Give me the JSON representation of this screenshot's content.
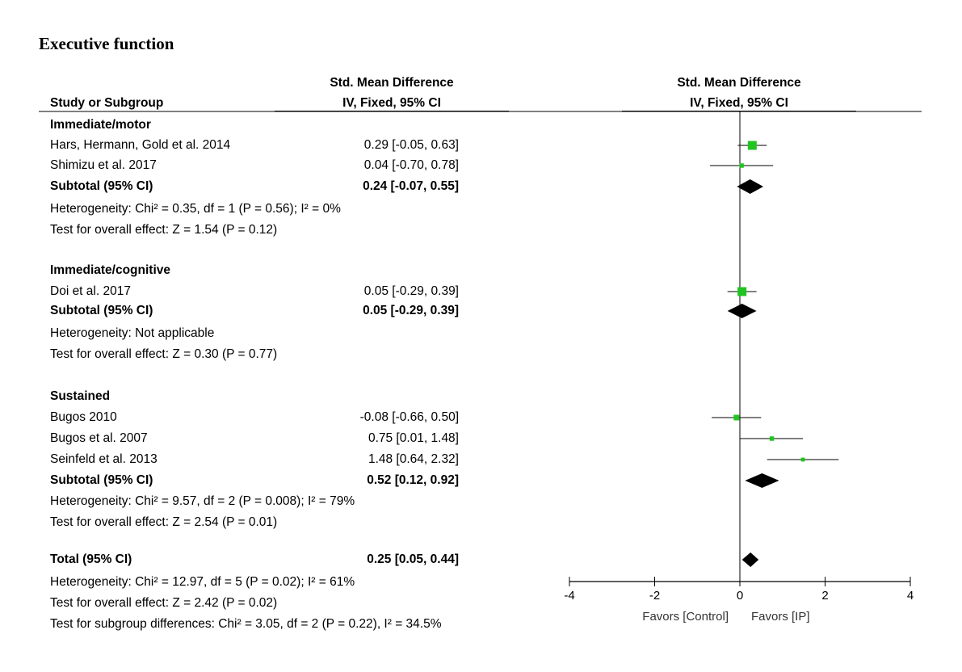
{
  "title": "Executive function",
  "headers": {
    "study": "Study or Subgroup",
    "left_col_top": "Std. Mean Difference",
    "left_col_bottom": "IV, Fixed, 95% CI",
    "plot_col_top": "Std. Mean Difference",
    "plot_col_bottom": "IV, Fixed, 95% CI"
  },
  "rows": [
    {
      "kind": "group",
      "label": "Immediate/motor"
    },
    {
      "kind": "study",
      "label": "Hars, Hermann, Gold et al. 2014",
      "ci": "0.29 [-0.05, 0.63]"
    },
    {
      "kind": "study",
      "label": "Shimizu et al. 2017",
      "ci": "0.04 [-0.70, 0.78]"
    },
    {
      "kind": "subtotal",
      "label": "Subtotal (95% CI)",
      "ci": "0.24 [-0.07, 0.55]"
    },
    {
      "kind": "note",
      "label": "Heterogeneity: Chi² = 0.35, df = 1 (P = 0.56); I² = 0%"
    },
    {
      "kind": "note",
      "label": "Test for overall effect: Z = 1.54 (P = 0.12)"
    },
    {
      "kind": "group",
      "label": "Immediate/cognitive"
    },
    {
      "kind": "study",
      "label": "Doi et al. 2017",
      "ci": "0.05 [-0.29, 0.39]"
    },
    {
      "kind": "subtotal",
      "label": "Subtotal (95% CI)",
      "ci": "0.05 [-0.29, 0.39]"
    },
    {
      "kind": "note",
      "label": "Heterogeneity: Not applicable"
    },
    {
      "kind": "note",
      "label": "Test for overall effect: Z = 0.30 (P = 0.77)"
    },
    {
      "kind": "group",
      "label": "Sustained"
    },
    {
      "kind": "study",
      "label": "Bugos 2010",
      "ci": "-0.08 [-0.66, 0.50]"
    },
    {
      "kind": "study",
      "label": "Bugos et al. 2007",
      "ci": "0.75 [0.01, 1.48]"
    },
    {
      "kind": "study",
      "label": "Seinfeld et al. 2013",
      "ci": "1.48 [0.64, 2.32]"
    },
    {
      "kind": "subtotal",
      "label": "Subtotal (95% CI)",
      "ci": "0.52 [0.12, 0.92]"
    },
    {
      "kind": "note",
      "label": "Heterogeneity: Chi² = 9.57, df = 2 (P = 0.008); I² = 79%"
    },
    {
      "kind": "note",
      "label": "Test for overall effect: Z = 2.54 (P = 0.01)"
    },
    {
      "kind": "total",
      "label": "Total (95% CI)",
      "ci": "0.25 [0.05, 0.44]"
    },
    {
      "kind": "note",
      "label": "Heterogeneity: Chi² = 12.97, df = 5 (P = 0.02); I² = 61%"
    },
    {
      "kind": "note",
      "label": "Test for overall effect: Z = 2.42 (P = 0.02)"
    },
    {
      "kind": "note",
      "label": "Test for subgroup differences: Chi² = 3.05, df = 2 (P = 0.22), I² = 34.5%"
    }
  ],
  "chart_data": {
    "type": "forest",
    "title": "Executive function",
    "xlim": [
      -4,
      4
    ],
    "xticks": [
      -4,
      -2,
      0,
      2,
      4
    ],
    "xtick_labels": [
      "-4",
      "-2",
      "0",
      "2",
      "4"
    ],
    "favors_left": "Favors [Control]",
    "favors_right": "Favors [IP]",
    "studies": [
      {
        "row": 1,
        "label": "Hars, Hermann, Gold et al. 2014",
        "estimate": 0.29,
        "lower": -0.05,
        "upper": 0.63
      },
      {
        "row": 2,
        "label": "Shimizu et al. 2017",
        "estimate": 0.04,
        "lower": -0.7,
        "upper": 0.78
      },
      {
        "row": 7,
        "label": "Doi et al. 2017",
        "estimate": 0.05,
        "lower": -0.29,
        "upper": 0.39
      },
      {
        "row": 12,
        "label": "Bugos 2010",
        "estimate": -0.08,
        "lower": -0.66,
        "upper": 0.5
      },
      {
        "row": 13,
        "label": "Bugos et al. 2007",
        "estimate": 0.75,
        "lower": 0.01,
        "upper": 1.48
      },
      {
        "row": 14,
        "label": "Seinfeld et al. 2013",
        "estimate": 1.48,
        "lower": 0.64,
        "upper": 2.32
      }
    ],
    "summaries": [
      {
        "row": 3,
        "label": "Immediate/motor subtotal",
        "estimate": 0.24,
        "lower": -0.07,
        "upper": 0.55
      },
      {
        "row": 8,
        "label": "Immediate/cognitive subtotal",
        "estimate": 0.05,
        "lower": -0.29,
        "upper": 0.39
      },
      {
        "row": 15,
        "label": "Sustained subtotal",
        "estimate": 0.52,
        "lower": 0.12,
        "upper": 0.92
      },
      {
        "row": 18,
        "label": "Total",
        "estimate": 0.25,
        "lower": 0.05,
        "upper": 0.44
      }
    ],
    "colors": {
      "marker": "#21c421",
      "line": "#000000",
      "diamond": "#000000"
    }
  }
}
